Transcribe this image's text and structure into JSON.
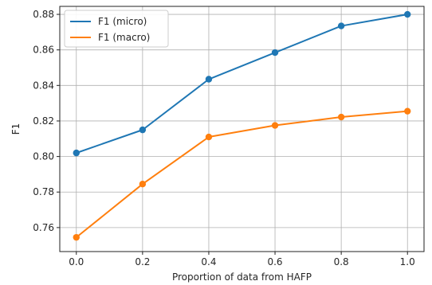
{
  "chart_data": {
    "type": "line",
    "x": [
      0.0,
      0.2,
      0.4,
      0.6,
      0.8,
      1.0
    ],
    "series": [
      {
        "name": "F1 (micro)",
        "color": "#1f77b4",
        "values": [
          0.802,
          0.815,
          0.8435,
          0.8585,
          0.8735,
          0.88
        ]
      },
      {
        "name": "F1 (macro)",
        "color": "#ff7f0e",
        "values": [
          0.7545,
          0.7845,
          0.811,
          0.8175,
          0.8222,
          0.8255
        ]
      }
    ],
    "title": "",
    "xlabel": "Proportion of data from HAFP",
    "ylabel": "F1",
    "xlim": [
      -0.05,
      1.05
    ],
    "ylim": [
      0.7465,
      0.8845
    ],
    "xticks": [
      "0.0",
      "0.2",
      "0.4",
      "0.6",
      "0.8",
      "1.0"
    ],
    "yticks": [
      "0.76",
      "0.78",
      "0.80",
      "0.82",
      "0.84",
      "0.86",
      "0.88"
    ],
    "grid": true,
    "legend": "upper-left"
  }
}
